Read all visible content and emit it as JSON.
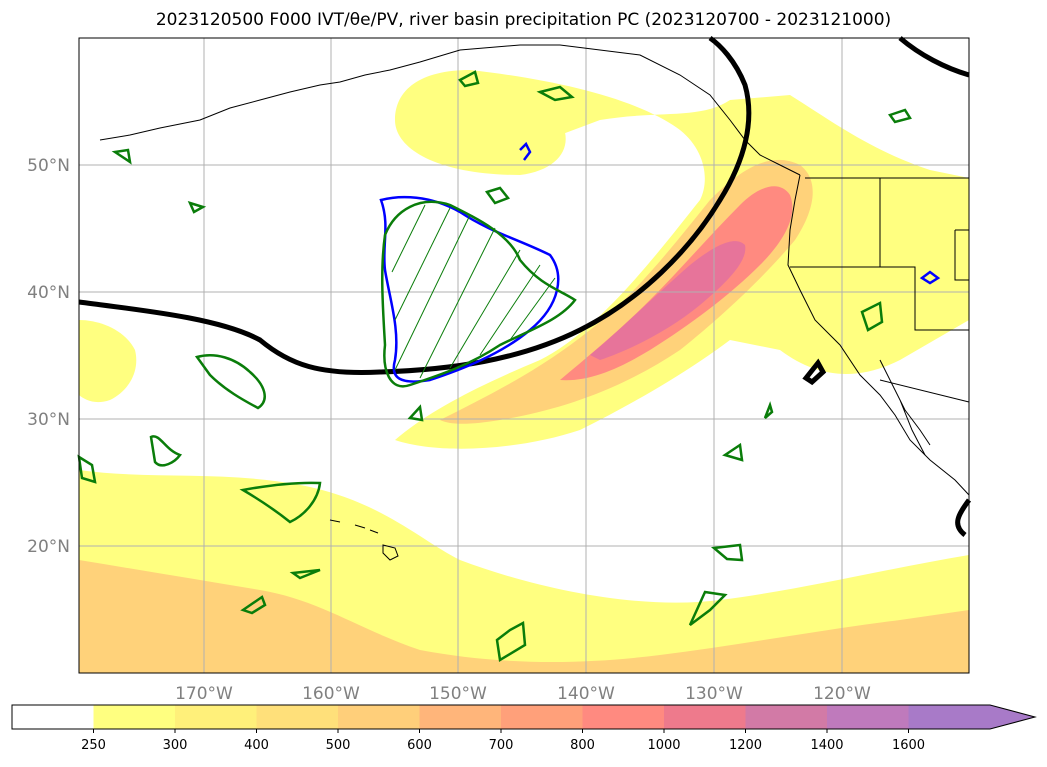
{
  "title": "2023120500 F000 IVT/θe/PV, river basin precipitation PC (2023120700 - 2023121000)",
  "map": {
    "lat_labels": [
      "50°N",
      "40°N",
      "30°N",
      "20°N"
    ],
    "lon_labels": [
      "170°W",
      "160°W",
      "150°W",
      "140°W",
      "130°W",
      "120°W"
    ],
    "grid": true
  },
  "colorbar": {
    "levels": [
      "250",
      "300",
      "400",
      "500",
      "600",
      "700",
      "800",
      "1000",
      "1200",
      "1400",
      "1600"
    ],
    "colors": [
      "#ffffff",
      "#ffff80",
      "#fff07a",
      "#ffe07a",
      "#ffcf7a",
      "#ffb57a",
      "#ffa07a",
      "#ff8a80",
      "#ee7a8c",
      "#d27aa6",
      "#bf7abc",
      "#a87ac8"
    ],
    "extend": "max"
  },
  "colors": {
    "ivt_light": "#ffff80",
    "ivt_mid": "#ffd27a",
    "ivt_high": "#ff8a80",
    "ivt_peak": "#e7749a",
    "pv_contour": "#0a7d0a",
    "theta_contour": "#0000ff",
    "thick_line": "#000000",
    "coastline": "#000000"
  }
}
